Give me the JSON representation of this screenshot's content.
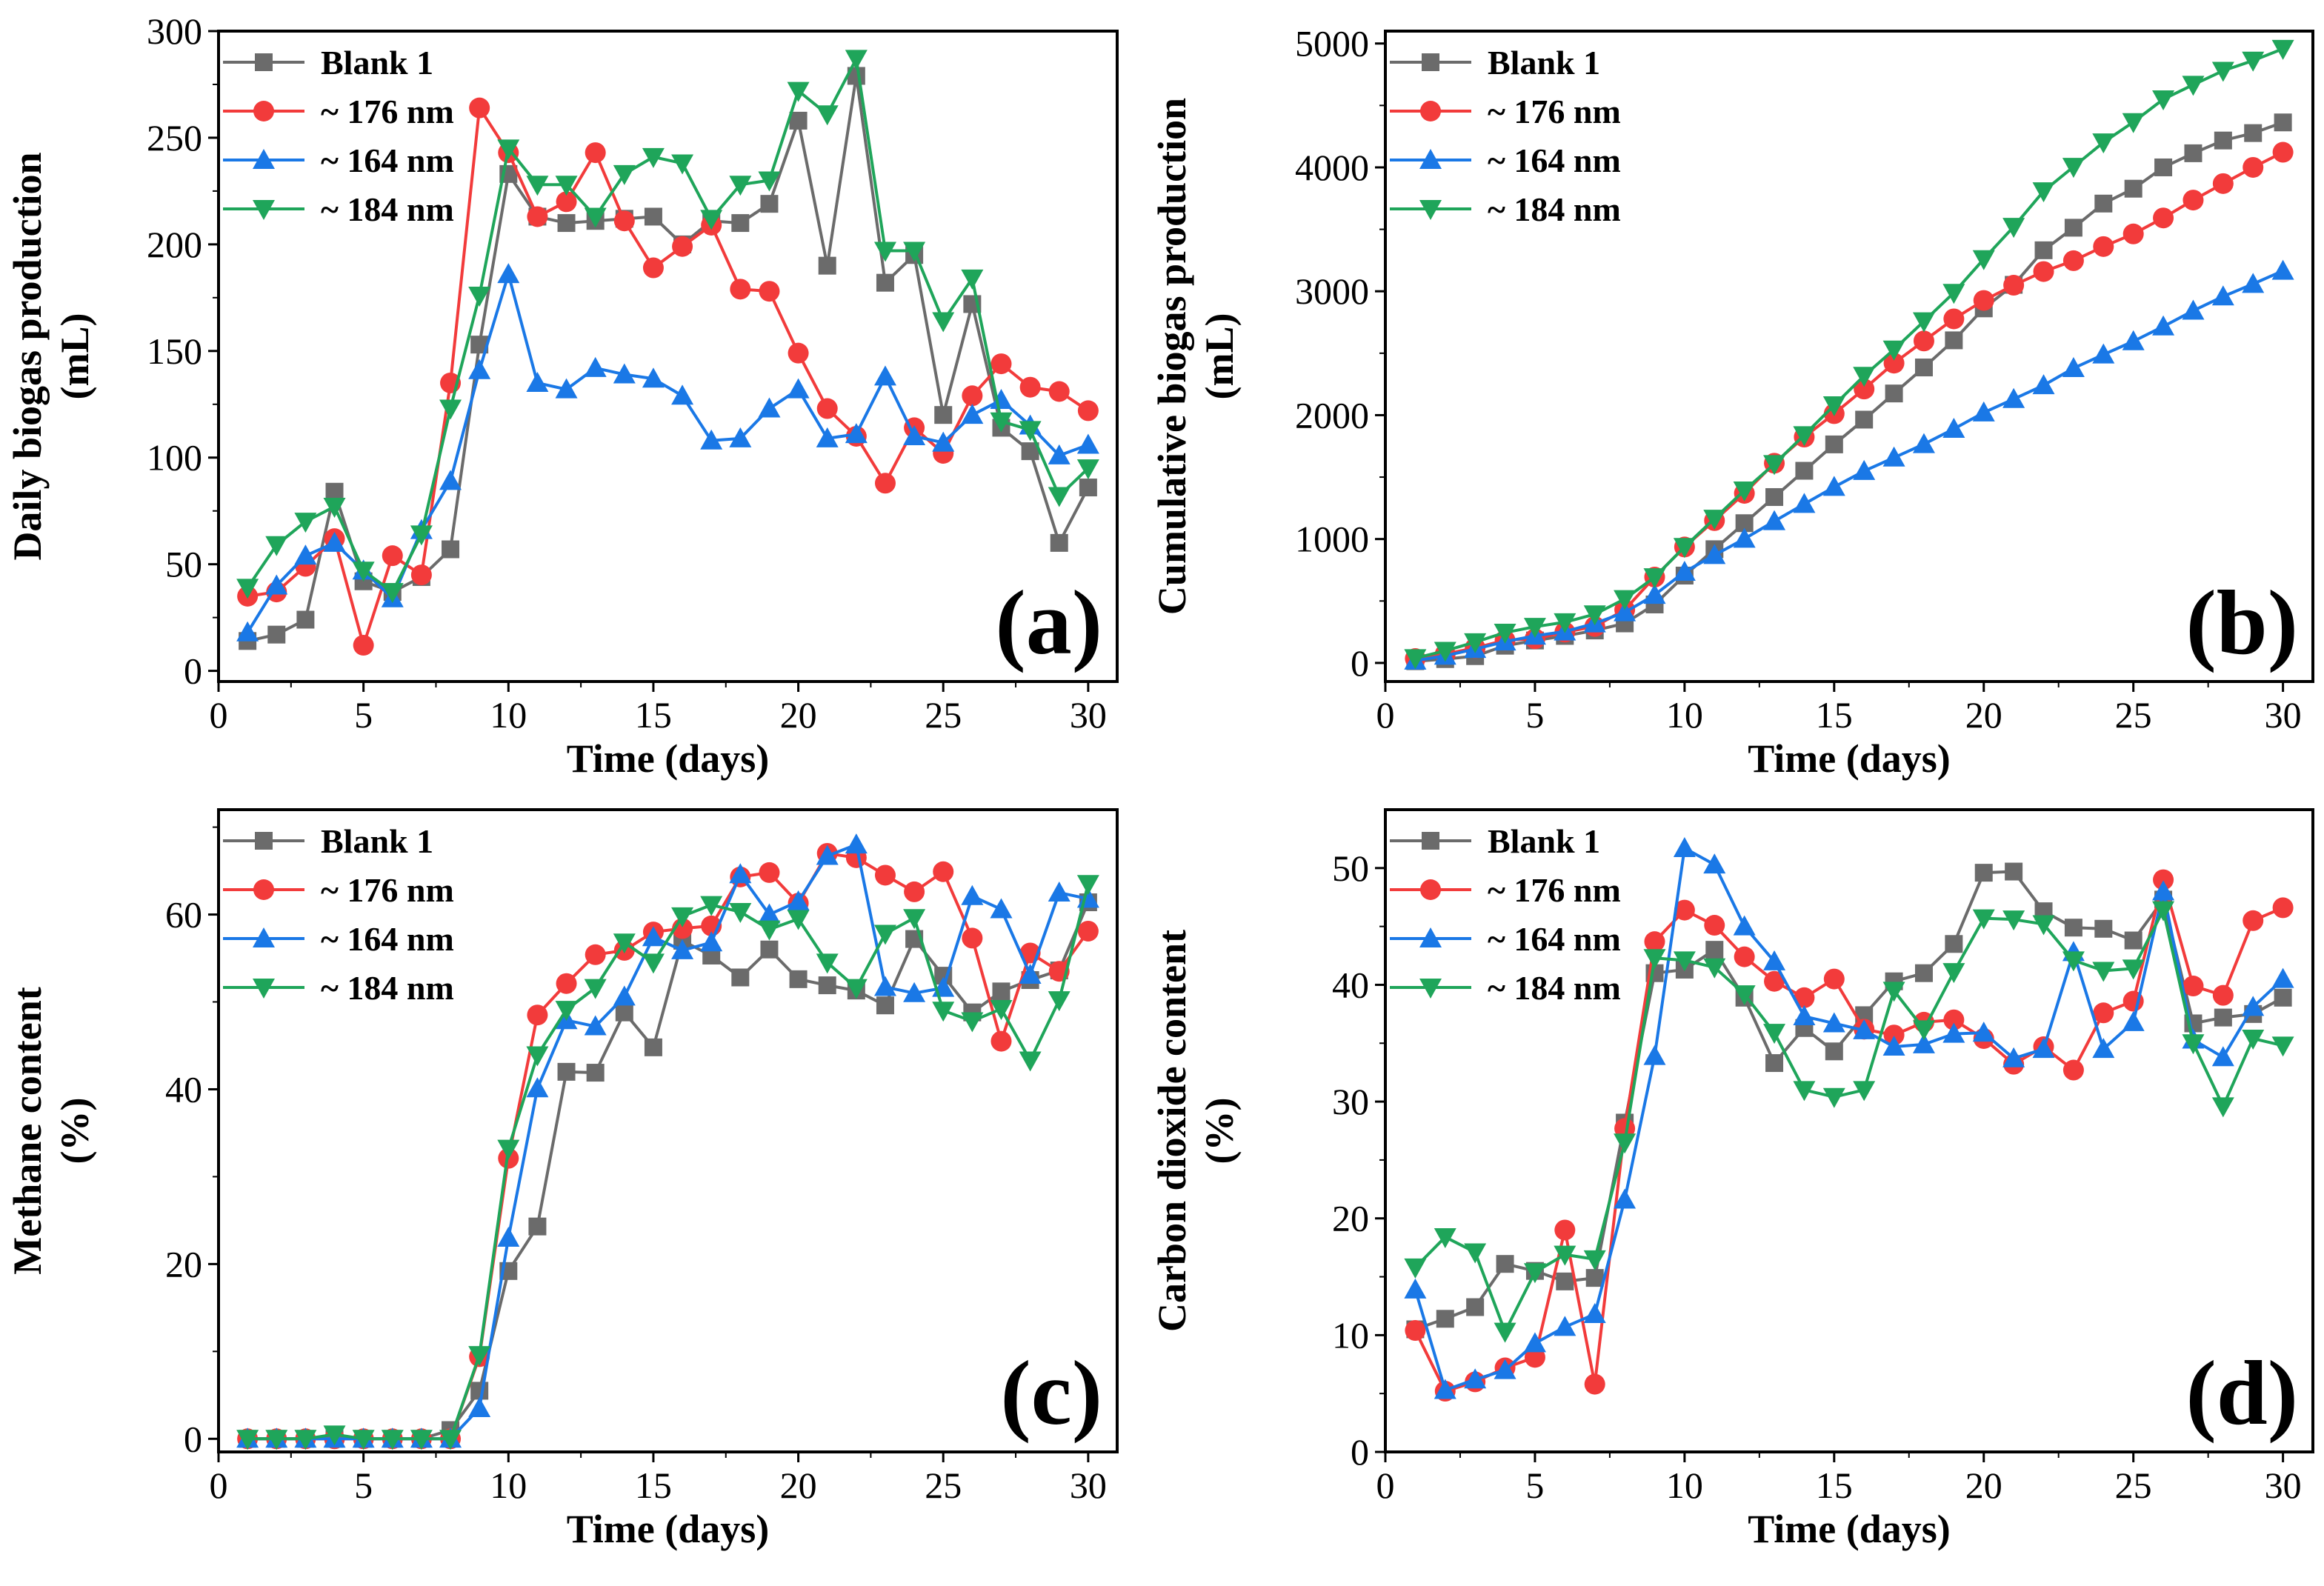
{
  "chart_data": [
    {
      "type": "line",
      "panel_label": "(a)",
      "xlabel": "Time (days)",
      "ylabel": [
        "Daily biogas production",
        "(mL)"
      ],
      "xlim": [
        0,
        31
      ],
      "ylim": [
        -5,
        300
      ],
      "xticks": [
        0,
        5,
        10,
        15,
        20,
        25,
        30
      ],
      "xtick_labels": [
        "0",
        "5",
        "10",
        "15",
        "20",
        "25",
        "30"
      ],
      "yticks": [
        0,
        50,
        100,
        150,
        200,
        250,
        300
      ],
      "ytick_labels": [
        "0",
        "50",
        "100",
        "150",
        "200",
        "250",
        "300"
      ],
      "legend_position": "top-left",
      "x": [
        1,
        2,
        3,
        4,
        5,
        6,
        7,
        8,
        9,
        10,
        11,
        12,
        13,
        14,
        15,
        16,
        17,
        18,
        19,
        20,
        21,
        22,
        23,
        24,
        25,
        26,
        27,
        28,
        29,
        30
      ],
      "series": [
        {
          "name": "Blank 1",
          "color": "#6b6b6b",
          "marker": "square",
          "values": [
            14,
            17,
            24,
            84,
            42,
            37,
            44,
            57,
            153,
            233,
            213,
            210,
            211,
            212,
            213,
            200,
            211,
            210,
            219,
            258,
            190,
            279,
            182,
            195,
            120,
            172,
            114,
            103,
            60,
            86
          ]
        },
        {
          "name": "~ 176 nm",
          "color": "#f23b3b",
          "marker": "circle",
          "values": [
            35,
            37,
            49,
            62,
            12,
            54,
            45,
            135,
            264,
            243,
            213,
            220,
            243,
            211,
            189,
            199,
            209,
            179,
            178,
            149,
            123,
            110,
            88,
            114,
            102,
            129,
            144,
            133,
            131,
            122
          ]
        },
        {
          "name": "~ 164 nm",
          "color": "#1a78e6",
          "marker": "triangle-up",
          "values": [
            18,
            40,
            54,
            60,
            47,
            34,
            66,
            89,
            141,
            186,
            135,
            132,
            142,
            139,
            137,
            129,
            108,
            109,
            123,
            132,
            109,
            111,
            138,
            110,
            107,
            120,
            127,
            115,
            101,
            106
          ]
        },
        {
          "name": "~ 184 nm",
          "color": "#1fa55a",
          "marker": "triangle-down",
          "values": [
            39,
            59,
            70,
            77,
            47,
            37,
            64,
            123,
            176,
            245,
            228,
            228,
            213,
            233,
            241,
            238,
            212,
            228,
            230,
            272,
            261,
            287,
            197,
            197,
            164,
            184,
            117,
            113,
            82,
            95
          ]
        }
      ]
    },
    {
      "type": "line",
      "panel_label": "(b)",
      "xlabel": "Time (days)",
      "ylabel": [
        "Cumulative biogas production",
        "(mL)"
      ],
      "xlim": [
        0,
        31
      ],
      "ylim": [
        -150,
        5100
      ],
      "xticks": [
        0,
        5,
        10,
        15,
        20,
        25,
        30
      ],
      "xtick_labels": [
        "0",
        "5",
        "10",
        "15",
        "20",
        "25",
        "30"
      ],
      "yticks": [
        0,
        1000,
        2000,
        3000,
        4000,
        5000
      ],
      "ytick_labels": [
        "0",
        "1000",
        "2000",
        "3000",
        "4000",
        "5000"
      ],
      "legend_position": "top-left",
      "x": [
        1,
        2,
        3,
        4,
        5,
        6,
        7,
        8,
        9,
        10,
        11,
        12,
        13,
        14,
        15,
        16,
        17,
        18,
        19,
        20,
        21,
        22,
        23,
        24,
        25,
        26,
        27,
        28,
        29,
        30
      ],
      "series": [
        {
          "name": "Blank 1",
          "color": "#6b6b6b",
          "marker": "square",
          "values": [
            14,
            31,
            55,
            139,
            181,
            218,
            262,
            319,
            472,
            705,
            918,
            1128,
            1339,
            1551,
            1764,
            1964,
            2175,
            2385,
            2604,
            2862,
            3052,
            3331,
            3513,
            3708,
            3828,
            4000,
            4114,
            4217,
            4277,
            4363
          ]
        },
        {
          "name": "~ 176 nm",
          "color": "#f23b3b",
          "marker": "circle",
          "values": [
            35,
            72,
            121,
            183,
            195,
            249,
            294,
            429,
            693,
            936,
            1149,
            1369,
            1612,
            1823,
            2012,
            2211,
            2420,
            2599,
            2777,
            2926,
            3049,
            3159,
            3247,
            3361,
            3463,
            3592,
            3736,
            3869,
            4000,
            4122
          ]
        },
        {
          "name": "~ 164 nm",
          "color": "#1a78e6",
          "marker": "triangle-up",
          "values": [
            18,
            58,
            112,
            172,
            219,
            253,
            319,
            408,
            549,
            735,
            870,
            1002,
            1144,
            1283,
            1420,
            1549,
            1657,
            1766,
            1889,
            2021,
            2130,
            2241,
            2379,
            2489,
            2596,
            2716,
            2843,
            2958,
            3059,
            3165
          ]
        },
        {
          "name": "~ 184 nm",
          "color": "#1fa55a",
          "marker": "triangle-down",
          "values": [
            39,
            98,
            168,
            245,
            292,
            329,
            393,
            516,
            692,
            937,
            1165,
            1393,
            1606,
            1839,
            2080,
            2318,
            2530,
            2758,
            2988,
            3260,
            3521,
            3808,
            4005,
            4202,
            4366,
            4550,
            4667,
            4780,
            4862,
            4957
          ]
        }
      ]
    },
    {
      "type": "line",
      "panel_label": "(c)",
      "xlabel": "Time (days)",
      "ylabel": [
        "Methane content",
        "(%)"
      ],
      "xlim": [
        0,
        31
      ],
      "ylim": [
        -1.5,
        72
      ],
      "xticks": [
        0,
        5,
        10,
        15,
        20,
        25,
        30
      ],
      "xtick_labels": [
        "0",
        "5",
        "10",
        "15",
        "20",
        "25",
        "30"
      ],
      "yticks": [
        0,
        20,
        40,
        60
      ],
      "ytick_labels": [
        "0",
        "20",
        "40",
        "60"
      ],
      "legend_position": "top-left",
      "x": [
        1,
        2,
        3,
        4,
        5,
        6,
        7,
        8,
        9,
        10,
        11,
        12,
        13,
        14,
        15,
        16,
        17,
        18,
        19,
        20,
        21,
        22,
        23,
        24,
        25,
        26,
        27,
        28,
        29,
        30
      ],
      "series": [
        {
          "name": "Blank 1",
          "color": "#6b6b6b",
          "marker": "square",
          "values": [
            0,
            0,
            0,
            0,
            0,
            0,
            0,
            1,
            5.5,
            19.2,
            24.3,
            42,
            41.9,
            48.8,
            44.8,
            57,
            55.3,
            52.8,
            56,
            52.6,
            51.9,
            51.3,
            49.6,
            57.2,
            53,
            48.8,
            51.2,
            52.5,
            53.6,
            61.4
          ]
        },
        {
          "name": "~ 176 nm",
          "color": "#f23b3b",
          "marker": "circle",
          "values": [
            0,
            0,
            0,
            0,
            0,
            0,
            0,
            0,
            9.4,
            32.1,
            48.5,
            52.1,
            55.4,
            55.9,
            58,
            58.4,
            58.7,
            64.3,
            64.8,
            61.3,
            67,
            66.5,
            64.5,
            62.6,
            64.9,
            57.3,
            45.5,
            55.6,
            53.5,
            58.1
          ]
        },
        {
          "name": "~ 164 nm",
          "color": "#1a78e6",
          "marker": "triangle-up",
          "values": [
            0,
            0,
            0,
            0,
            0,
            0,
            0,
            0,
            3.5,
            23,
            40.1,
            47.9,
            47.2,
            50.6,
            57.4,
            55.9,
            56.8,
            64.6,
            60,
            61.5,
            66.7,
            68,
            51.7,
            51,
            51.6,
            62.1,
            60.6,
            53.1,
            62.5,
            61.8
          ]
        },
        {
          "name": "~ 184 nm",
          "color": "#1fa55a",
          "marker": "triangle-down",
          "values": [
            0,
            0,
            0,
            0.5,
            0,
            0,
            0,
            0,
            9.6,
            33.2,
            43.9,
            49.1,
            51.6,
            56.8,
            54.5,
            59.8,
            61.1,
            60.3,
            58.3,
            59.5,
            54.5,
            51.6,
            57.8,
            59.6,
            49,
            47.8,
            49.2,
            43.3,
            50.2,
            63.5
          ]
        }
      ]
    },
    {
      "type": "line",
      "panel_label": "(d)",
      "xlabel": "Time (days)",
      "ylabel": [
        "Carbon dioxide content",
        "(%)"
      ],
      "xlim": [
        0,
        31
      ],
      "ylim": [
        0,
        55
      ],
      "xticks": [
        0,
        5,
        10,
        15,
        20,
        25,
        30
      ],
      "xtick_labels": [
        "0",
        "5",
        "10",
        "15",
        "20",
        "25",
        "30"
      ],
      "yticks": [
        0,
        10,
        20,
        30,
        40,
        50
      ],
      "ytick_labels": [
        "0",
        "10",
        "20",
        "30",
        "40",
        "50"
      ],
      "legend_position": "top-left",
      "x": [
        1,
        2,
        3,
        4,
        5,
        6,
        7,
        8,
        9,
        10,
        11,
        12,
        13,
        14,
        15,
        16,
        17,
        18,
        19,
        20,
        21,
        22,
        23,
        24,
        25,
        26,
        27,
        28,
        29,
        30
      ],
      "series": [
        {
          "name": "Blank 1",
          "color": "#6b6b6b",
          "marker": "square",
          "values": [
            10.5,
            11.4,
            12.4,
            16.1,
            15.5,
            14.6,
            14.9,
            28.2,
            41,
            41.3,
            43,
            38.9,
            33.3,
            36.3,
            34.3,
            37.4,
            40.3,
            41,
            43.5,
            49.6,
            49.7,
            46.3,
            44.9,
            44.8,
            43.8,
            47.3,
            36.7,
            37.2,
            37.5,
            38.9
          ]
        },
        {
          "name": "~ 176 nm",
          "color": "#f23b3b",
          "marker": "circle",
          "values": [
            10.4,
            5.2,
            6,
            7.2,
            8.1,
            19,
            5.8,
            27.7,
            43.7,
            46.4,
            45.1,
            42.4,
            40.3,
            38.9,
            40.5,
            36.2,
            35.7,
            36.8,
            37,
            35.4,
            33.2,
            34.7,
            32.7,
            37.6,
            38.6,
            49,
            39.9,
            39.1,
            45.5,
            46.6
          ]
        },
        {
          "name": "~ 164 nm",
          "color": "#1a78e6",
          "marker": "triangle-up",
          "values": [
            13.9,
            5.3,
            6.2,
            7,
            9.3,
            10.7,
            11.8,
            21.6,
            33.9,
            51.7,
            50.3,
            45,
            42,
            37.3,
            36.7,
            36.1,
            34.7,
            34.9,
            35.8,
            35.9,
            33.7,
            34.5,
            42.8,
            34.5,
            36.8,
            48,
            35.3,
            33.8,
            38.1,
            40.5
          ]
        },
        {
          "name": "~ 184 nm",
          "color": "#1fa55a",
          "marker": "triangle-down",
          "values": [
            15.8,
            18.4,
            17.1,
            10.3,
            15.4,
            16.9,
            16.5,
            26.5,
            42.3,
            42.1,
            41.5,
            39.2,
            35.9,
            31,
            30.4,
            31,
            39.5,
            36.2,
            41.1,
            45.7,
            45.6,
            45.2,
            42.1,
            41.2,
            41.4,
            46.4,
            35,
            29.6,
            35.4,
            34.8
          ]
        }
      ]
    }
  ]
}
